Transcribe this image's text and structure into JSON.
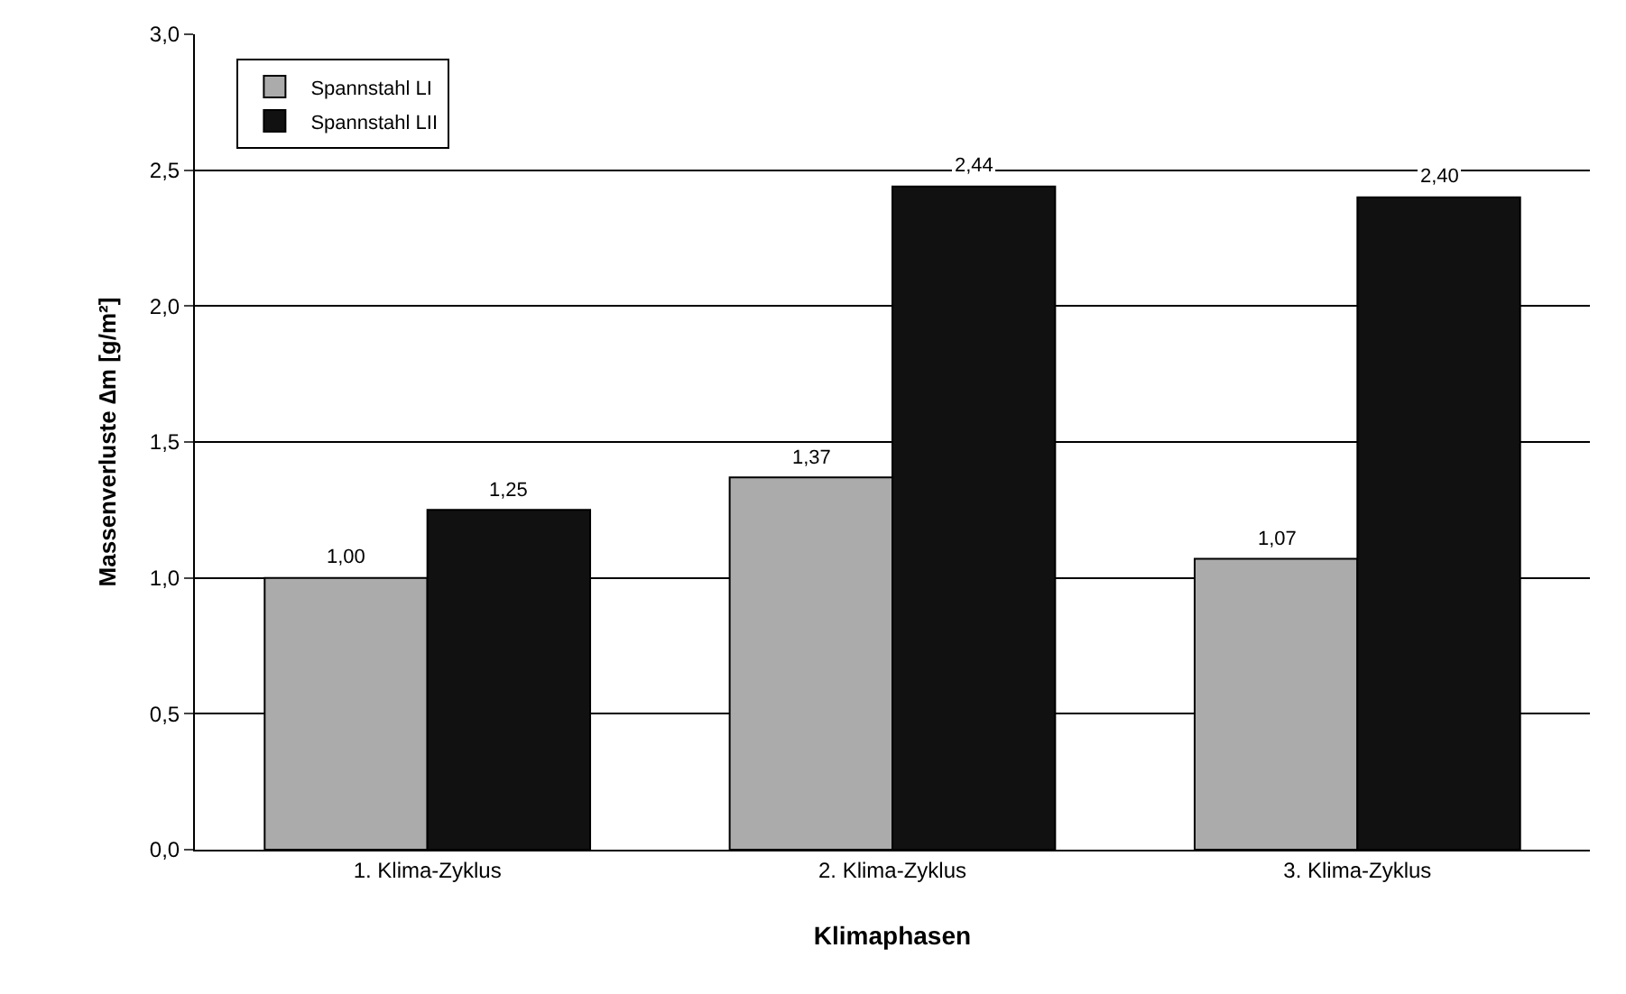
{
  "chart_data": {
    "type": "bar",
    "xlabel": "Klimaphasen",
    "ylabel": "Massenverluste ∆m [g/m²]",
    "categories": [
      "1. Klima-Zyklus",
      "2. Klima-Zyklus",
      "3. Klima-Zyklus"
    ],
    "series": [
      {
        "name": "Spannstahl LI",
        "color": "#ababab",
        "values": [
          1.0,
          1.37,
          1.07
        ],
        "value_labels": [
          "1,00",
          "1,37",
          "1,07"
        ]
      },
      {
        "name": "Spannstahl LII",
        "color": "#111111",
        "values": [
          1.25,
          2.44,
          2.4
        ],
        "value_labels": [
          "1,25",
          "2,44",
          "2,40"
        ]
      }
    ],
    "ylim": [
      0,
      3
    ],
    "yticks": [
      {
        "value": 0,
        "label": "0,0"
      },
      {
        "value": 0.5,
        "label": "0,5"
      },
      {
        "value": 1,
        "label": "1,0"
      },
      {
        "value": 1.5,
        "label": "1,5"
      },
      {
        "value": 2,
        "label": "2,0"
      },
      {
        "value": 2.5,
        "label": "2,5"
      },
      {
        "value": 3,
        "label": "3,0"
      }
    ],
    "grid": "y",
    "legend": "top left"
  }
}
